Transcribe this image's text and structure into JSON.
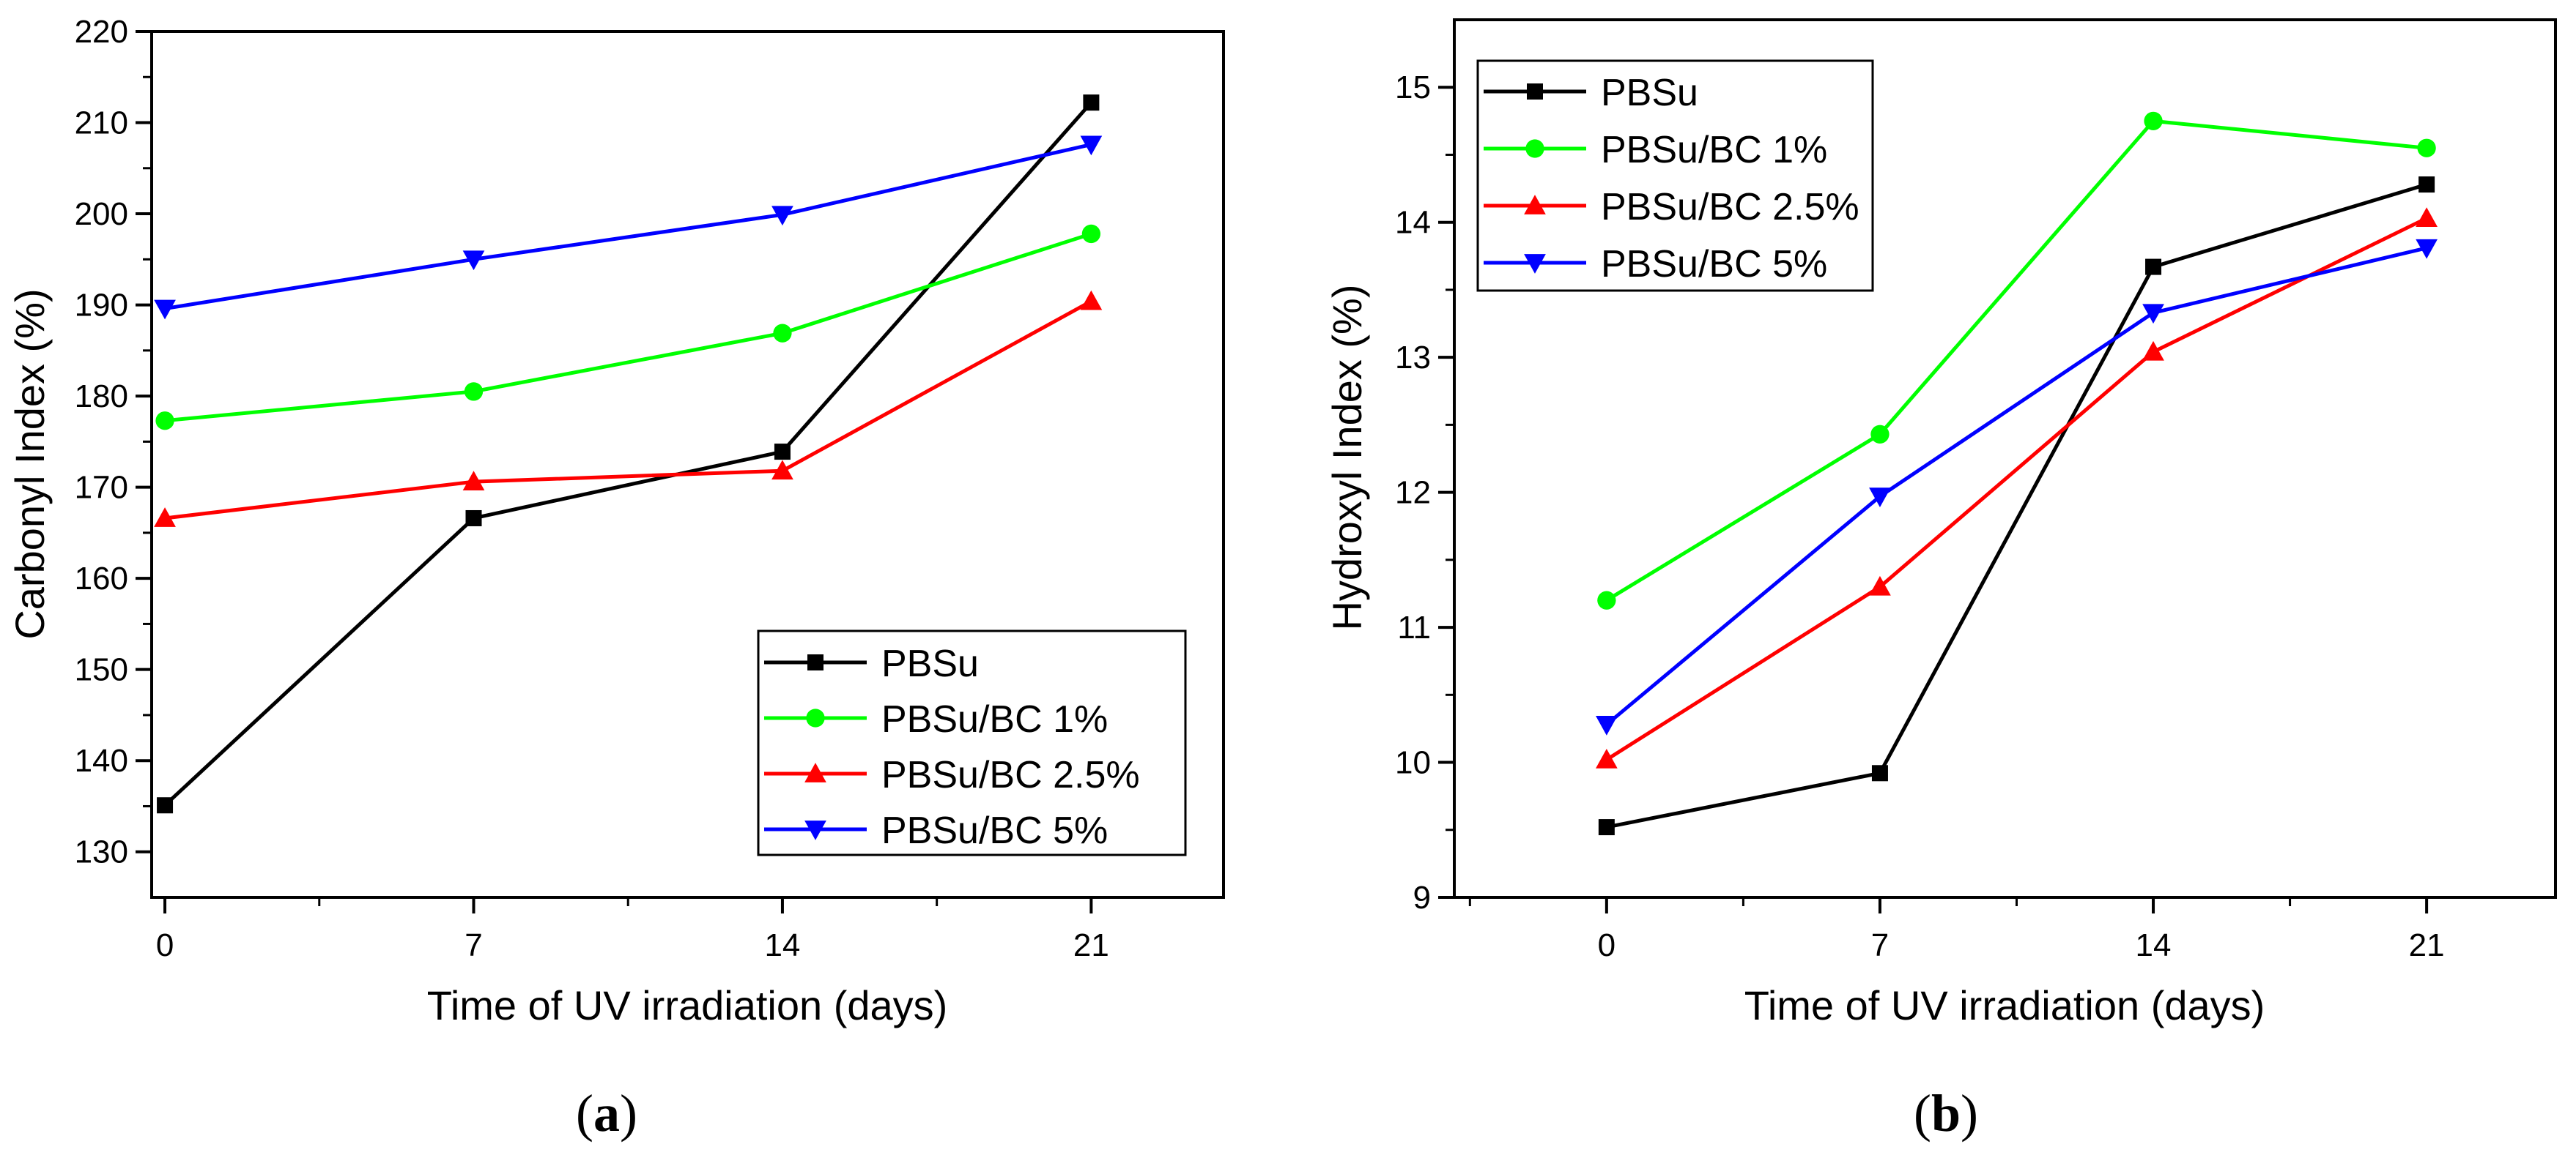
{
  "chart_data": [
    {
      "type": "line",
      "panel_label": "a",
      "xlabel": "Time of UV irradiation (days)",
      "ylabel": "Carbonyl Index (%)",
      "x": [
        0,
        7,
        14,
        21
      ],
      "xlim": [
        -0.3,
        24
      ],
      "ylim": [
        125,
        220
      ],
      "xticks": [
        0,
        7,
        14,
        21
      ],
      "yticks": [
        130,
        140,
        150,
        160,
        170,
        180,
        190,
        200,
        210,
        220
      ],
      "legend_position": "bottom-right",
      "series": [
        {
          "name": "PBSu",
          "color": "#000000",
          "marker": "square",
          "values": [
            135.1,
            166.6,
            173.9,
            212.2
          ]
        },
        {
          "name": "PBSu/BC 1%",
          "color": "#00ff00",
          "marker": "circle",
          "values": [
            177.3,
            180.5,
            186.9,
            197.8
          ]
        },
        {
          "name": "PBSu/BC 2.5%",
          "color": "#ff0000",
          "marker": "triangle-up",
          "values": [
            166.6,
            170.6,
            171.8,
            190.4
          ]
        },
        {
          "name": "PBSu/BC 5%",
          "color": "#0000ff",
          "marker": "triangle-down",
          "values": [
            189.6,
            195.0,
            199.9,
            207.6
          ]
        }
      ]
    },
    {
      "type": "line",
      "panel_label": "b",
      "xlabel": "Time of UV irradiation (days)",
      "ylabel": "Hydroxyl Index (%)",
      "x": [
        0,
        7,
        14,
        21
      ],
      "xlim": [
        -3.9,
        24.3
      ],
      "ylim": [
        9,
        15.5
      ],
      "xticks": [
        0,
        7,
        14,
        21
      ],
      "yticks": [
        9,
        10,
        11,
        12,
        13,
        14,
        15
      ],
      "legend_position": "top-left",
      "series": [
        {
          "name": "PBSu",
          "color": "#000000",
          "marker": "square",
          "values": [
            9.52,
            9.92,
            13.67,
            14.28
          ]
        },
        {
          "name": "PBSu/BC 1%",
          "color": "#00ff00",
          "marker": "circle",
          "values": [
            11.2,
            12.43,
            14.75,
            14.55
          ]
        },
        {
          "name": "PBSu/BC 2.5%",
          "color": "#ff0000",
          "marker": "triangle-up",
          "values": [
            10.02,
            11.3,
            13.04,
            14.03
          ]
        },
        {
          "name": "PBSu/BC 5%",
          "color": "#0000ff",
          "marker": "triangle-down",
          "values": [
            10.28,
            11.97,
            13.33,
            13.81
          ]
        }
      ]
    }
  ]
}
